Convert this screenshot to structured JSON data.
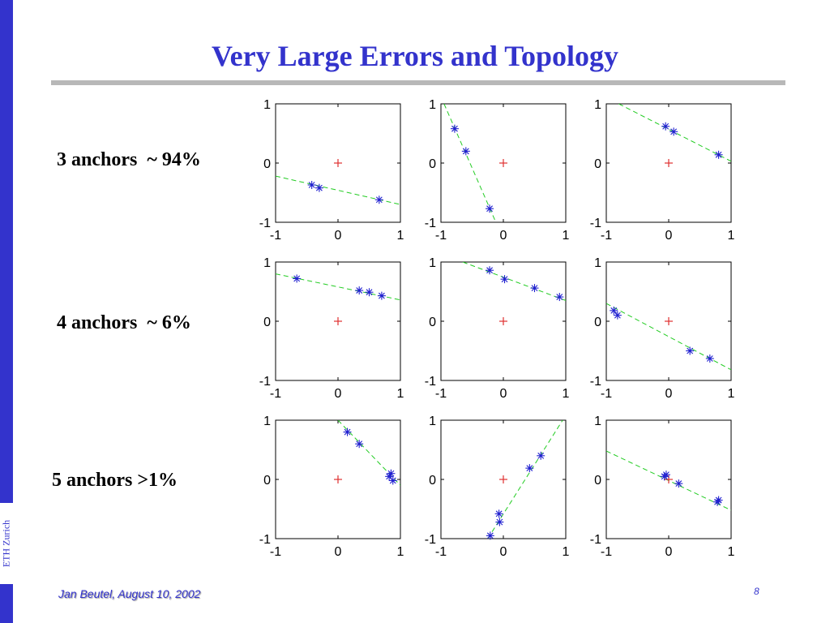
{
  "slide": {
    "title": "Very Large Errors and Topology",
    "sidebar_text": "ETH Zurich",
    "footer_author": "Jan Beutel, August 10, 2002",
    "page_number": "8",
    "row_labels": [
      "3 anchors  ~ 94%",
      "4 anchors  ~ 6%",
      "5 anchors >1%"
    ]
  },
  "colors": {
    "accent": "#3333cc",
    "marker": "#1f1fd0",
    "origin": "#e03030",
    "fit_line": "#22cc22",
    "rule": "#b8b8b8"
  },
  "chart_data": [
    {
      "type": "scatter",
      "xlim": [
        -1,
        1
      ],
      "ylim": [
        -1,
        1
      ],
      "xticks": [
        "-1",
        "0",
        "1"
      ],
      "yticks": [
        "-1",
        "0",
        "1"
      ],
      "origin_marker": [
        0,
        0
      ],
      "points": [
        [
          -0.42,
          -0.37
        ],
        [
          -0.3,
          -0.42
        ],
        [
          0.66,
          -0.62
        ]
      ],
      "fit_line": [
        [
          -1,
          -0.22
        ],
        [
          1,
          -0.7
        ]
      ]
    },
    {
      "type": "scatter",
      "xlim": [
        -1,
        1
      ],
      "ylim": [
        -1,
        1
      ],
      "xticks": [
        "-1",
        "0",
        "1"
      ],
      "yticks": [
        "-1",
        "0",
        "1"
      ],
      "origin_marker": [
        0,
        0
      ],
      "points": [
        [
          -0.78,
          0.58
        ],
        [
          -0.6,
          0.2
        ],
        [
          -0.22,
          -0.77
        ]
      ],
      "fit_line": [
        [
          -0.95,
          1
        ],
        [
          -0.12,
          -1
        ]
      ]
    },
    {
      "type": "scatter",
      "xlim": [
        -1,
        1
      ],
      "ylim": [
        -1,
        1
      ],
      "xticks": [
        "-1",
        "0",
        "1"
      ],
      "yticks": [
        "-1",
        "0",
        "1"
      ],
      "origin_marker": [
        0,
        0
      ],
      "points": [
        [
          -0.05,
          0.62
        ],
        [
          0.08,
          0.53
        ],
        [
          0.8,
          0.14
        ]
      ],
      "fit_line": [
        [
          -0.8,
          1
        ],
        [
          1,
          0.03
        ]
      ]
    },
    {
      "type": "scatter",
      "xlim": [
        -1,
        1
      ],
      "ylim": [
        -1,
        1
      ],
      "xticks": [
        "-1",
        "0",
        "1"
      ],
      "yticks": [
        "-1",
        "0",
        "1"
      ],
      "origin_marker": [
        0,
        0
      ],
      "points": [
        [
          -0.66,
          0.72
        ],
        [
          0.34,
          0.52
        ],
        [
          0.5,
          0.49
        ],
        [
          0.7,
          0.43
        ]
      ],
      "fit_line": [
        [
          -1,
          0.8
        ],
        [
          1,
          0.36
        ]
      ]
    },
    {
      "type": "scatter",
      "xlim": [
        -1,
        1
      ],
      "ylim": [
        -1,
        1
      ],
      "xticks": [
        "-1",
        "0",
        "1"
      ],
      "yticks": [
        "-1",
        "0",
        "1"
      ],
      "origin_marker": [
        0,
        0
      ],
      "points": [
        [
          -0.22,
          0.86
        ],
        [
          0.02,
          0.71
        ],
        [
          0.5,
          0.56
        ],
        [
          0.9,
          0.41
        ]
      ],
      "fit_line": [
        [
          -0.65,
          1
        ],
        [
          1,
          0.35
        ]
      ]
    },
    {
      "type": "scatter",
      "xlim": [
        -1,
        1
      ],
      "ylim": [
        -1,
        1
      ],
      "xticks": [
        "-1",
        "0",
        "1"
      ],
      "yticks": [
        "-1",
        "0",
        "1"
      ],
      "origin_marker": [
        0,
        0
      ],
      "points": [
        [
          -0.88,
          0.18
        ],
        [
          -0.82,
          0.1
        ],
        [
          0.34,
          -0.5
        ],
        [
          0.66,
          -0.63
        ]
      ],
      "fit_line": [
        [
          -1,
          0.3
        ],
        [
          1,
          -0.82
        ]
      ]
    },
    {
      "type": "scatter",
      "xlim": [
        -1,
        1
      ],
      "ylim": [
        -1,
        1
      ],
      "xticks": [
        "-1",
        "0",
        "1"
      ],
      "yticks": [
        "-1",
        "0",
        "1"
      ],
      "origin_marker": [
        0,
        0
      ],
      "points": [
        [
          0.15,
          0.8
        ],
        [
          0.34,
          0.6
        ],
        [
          0.85,
          0.1
        ],
        [
          0.82,
          0.05
        ],
        [
          0.88,
          -0.02
        ]
      ],
      "fit_line": [
        [
          0,
          1
        ],
        [
          1,
          -0.1
        ]
      ]
    },
    {
      "type": "scatter",
      "xlim": [
        -1,
        1
      ],
      "ylim": [
        -1,
        1
      ],
      "xticks": [
        "-1",
        "0",
        "1"
      ],
      "yticks": [
        "-1",
        "0",
        "1"
      ],
      "origin_marker": [
        0,
        0
      ],
      "points": [
        [
          -0.21,
          -0.95
        ],
        [
          -0.07,
          -0.58
        ],
        [
          -0.06,
          -0.72
        ],
        [
          0.42,
          0.19
        ],
        [
          0.6,
          0.4
        ]
      ],
      "fit_line": [
        [
          -0.25,
          -1
        ],
        [
          0.95,
          1
        ]
      ]
    },
    {
      "type": "scatter",
      "xlim": [
        -1,
        1
      ],
      "ylim": [
        -1,
        1
      ],
      "xticks": [
        "-1",
        "0",
        "1"
      ],
      "yticks": [
        "-1",
        "0",
        "1"
      ],
      "origin_marker": [
        0,
        0
      ],
      "points": [
        [
          -0.07,
          0.05
        ],
        [
          -0.04,
          0.08
        ],
        [
          0.16,
          -0.07
        ],
        [
          0.78,
          -0.38
        ],
        [
          0.8,
          -0.35
        ]
      ],
      "fit_line": [
        [
          -1,
          0.48
        ],
        [
          1,
          -0.52
        ]
      ]
    }
  ]
}
